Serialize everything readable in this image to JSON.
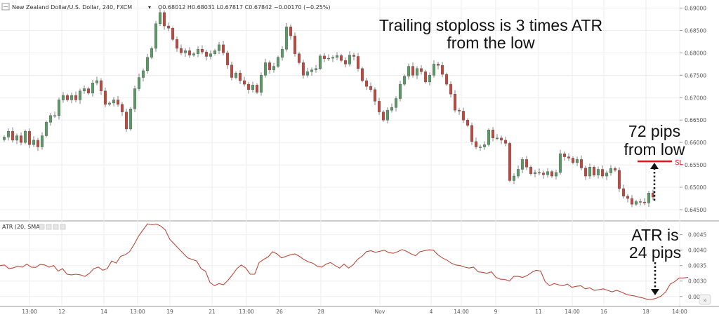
{
  "header": {
    "symbol": "New Zealand Dollar/U.S. Dollar, 240, FXCM",
    "ohlc": "O0.68012 H0.68031 L0.67817 C0.67842 −0.00170 (−0.25%)"
  },
  "indicator_header": {
    "label": "ATR (20, SMA)"
  },
  "annotations": {
    "title_line1": "Trailing stoploss is 3 times ATR",
    "title_line2": "from the low",
    "pips_line1": "72 pips",
    "pips_line2": "from low",
    "sl_label": "SL",
    "atr_line1": "ATR is",
    "atr_line2": "24 pips"
  },
  "colors": {
    "up": "#5b9a68",
    "down": "#c0483e",
    "atr_line": "#b94a3a",
    "stoploss": "#e8151b",
    "grid": "#eeeeee"
  },
  "chart_data": [
    {
      "type": "candlestick",
      "title": "New Zealand Dollar/U.S. Dollar, 240, FXCM",
      "y_ticks": [
        0.645,
        0.65,
        0.655,
        0.66,
        0.665,
        0.67,
        0.675,
        0.68,
        0.685,
        0.69
      ],
      "y_tick_labels": [
        "0.64500",
        "0.65000",
        "0.65500",
        "0.66000",
        "0.66500",
        "0.67000",
        "0.67500",
        "0.68000",
        "0.68500",
        "0.69000"
      ],
      "ylim": [
        0.6428,
        0.6918
      ],
      "x_tick_labels": [
        "13:00",
        "12",
        "14",
        "13:00",
        "19",
        "21",
        "13:00",
        "26",
        "28",
        "Nov",
        "4",
        "14:00",
        "9",
        "11",
        "14:00",
        "16",
        "18",
        "14:00"
      ],
      "grid": true,
      "close_path": [
        0.6612,
        0.6625,
        0.6605,
        0.6615,
        0.66,
        0.6625,
        0.6595,
        0.6605,
        0.659,
        0.6615,
        0.6645,
        0.666,
        0.666,
        0.6695,
        0.6705,
        0.6695,
        0.6705,
        0.6695,
        0.6715,
        0.672,
        0.671,
        0.6733,
        0.6738,
        0.6715,
        0.6685,
        0.6688,
        0.6695,
        0.6685,
        0.6668,
        0.663,
        0.6675,
        0.672,
        0.6745,
        0.676,
        0.679,
        0.681,
        0.6865,
        0.689,
        0.686,
        0.6855,
        0.683,
        0.681,
        0.68,
        0.6805,
        0.6795,
        0.6798,
        0.6808,
        0.6802,
        0.6792,
        0.6798,
        0.6805,
        0.6818,
        0.68,
        0.6773,
        0.6745,
        0.6755,
        0.6738,
        0.673,
        0.6718,
        0.6728,
        0.6712,
        0.675,
        0.6778,
        0.6762,
        0.677,
        0.679,
        0.6808,
        0.6858,
        0.6838,
        0.6798,
        0.6778,
        0.675,
        0.6758,
        0.6762,
        0.6765,
        0.6793,
        0.6787,
        0.6788,
        0.679,
        0.6794,
        0.6783,
        0.6775,
        0.6795,
        0.6792,
        0.6765,
        0.6738,
        0.6725,
        0.6718,
        0.6692,
        0.6668,
        0.665,
        0.6672,
        0.6678,
        0.6698,
        0.673,
        0.6748,
        0.677,
        0.675,
        0.6765,
        0.6758,
        0.6735,
        0.675,
        0.6775,
        0.6772,
        0.6752,
        0.673,
        0.6708,
        0.6672,
        0.667,
        0.665,
        0.6638,
        0.6602,
        0.659,
        0.659,
        0.6595,
        0.6628,
        0.661,
        0.661,
        0.6605,
        0.6598,
        0.6515,
        0.6525,
        0.654,
        0.6562,
        0.6545,
        0.653,
        0.6533,
        0.6532,
        0.6528,
        0.6535,
        0.6525,
        0.6533,
        0.6575,
        0.6568,
        0.6565,
        0.6555,
        0.6562,
        0.6543,
        0.6525,
        0.6545,
        0.6527,
        0.654,
        0.6525,
        0.6532,
        0.6542,
        0.6538,
        0.6497,
        0.648,
        0.6475,
        0.6462,
        0.6468,
        0.6467,
        0.6465,
        0.6487,
        0.6478
      ]
    },
    {
      "type": "line",
      "title": "ATR (20, SMA)",
      "y_ticks": [
        0.0025,
        0.003,
        0.0035,
        0.004,
        0.0045
      ],
      "y_tick_labels": [
        "0.0025",
        "0.0030",
        "0.0035",
        "0.0040",
        "0.0045"
      ],
      "ylim": [
        0.0022,
        0.0049
      ],
      "grid": true,
      "values": [
        0.0035,
        0.00352,
        0.0034,
        0.00343,
        0.00348,
        0.00345,
        0.00355,
        0.00345,
        0.00344,
        0.00354,
        0.00352,
        0.00345,
        0.0035,
        0.00332,
        0.0034,
        0.00322,
        0.0032,
        0.00322,
        0.0032,
        0.00315,
        0.00325,
        0.0034,
        0.00345,
        0.00335,
        0.0034,
        0.00365,
        0.00358,
        0.0038,
        0.00385,
        0.00395,
        0.00418,
        0.00445,
        0.00465,
        0.00485,
        0.00482,
        0.00484,
        0.00478,
        0.00465,
        0.00435,
        0.0042,
        0.00405,
        0.0039,
        0.00375,
        0.0037,
        0.00365,
        0.0034,
        0.00332,
        0.00295,
        0.00285,
        0.00292,
        0.00288,
        0.00302,
        0.0032,
        0.0034,
        0.00352,
        0.00342,
        0.00322,
        0.00322,
        0.0036,
        0.0037,
        0.00378,
        0.00395,
        0.00388,
        0.00375,
        0.0038,
        0.00385,
        0.00388,
        0.0038,
        0.0037,
        0.00362,
        0.00358,
        0.00348,
        0.00345,
        0.00355,
        0.0036,
        0.0035,
        0.00342,
        0.00355,
        0.00342,
        0.00352,
        0.0037,
        0.0038,
        0.00395,
        0.00398,
        0.00393,
        0.00396,
        0.004,
        0.00392,
        0.0039,
        0.00395,
        0.00402,
        0.00396,
        0.00388,
        0.00382,
        0.00395,
        0.00398,
        0.00401,
        0.004,
        0.00385,
        0.00375,
        0.00368,
        0.00358,
        0.00352,
        0.0035,
        0.00345,
        0.00342,
        0.00345,
        0.0033,
        0.00328,
        0.00325,
        0.0033,
        0.00312,
        0.00306,
        0.00305,
        0.003,
        0.00315,
        0.00315,
        0.00312,
        0.00318,
        0.00328,
        0.00335,
        0.00332,
        0.00298,
        0.00285,
        0.00292,
        0.00288,
        0.00285,
        0.0029,
        0.0028,
        0.00283,
        0.00285,
        0.00275,
        0.00278,
        0.0027,
        0.00272,
        0.00275,
        0.0027,
        0.00265,
        0.0027,
        0.00265,
        0.00258,
        0.00254,
        0.00252,
        0.00248,
        0.00245,
        0.0024,
        0.00241,
        0.00245,
        0.00252,
        0.00265,
        0.0029,
        0.00298,
        0.0031,
        0.0031,
        0.00312
      ]
    }
  ]
}
